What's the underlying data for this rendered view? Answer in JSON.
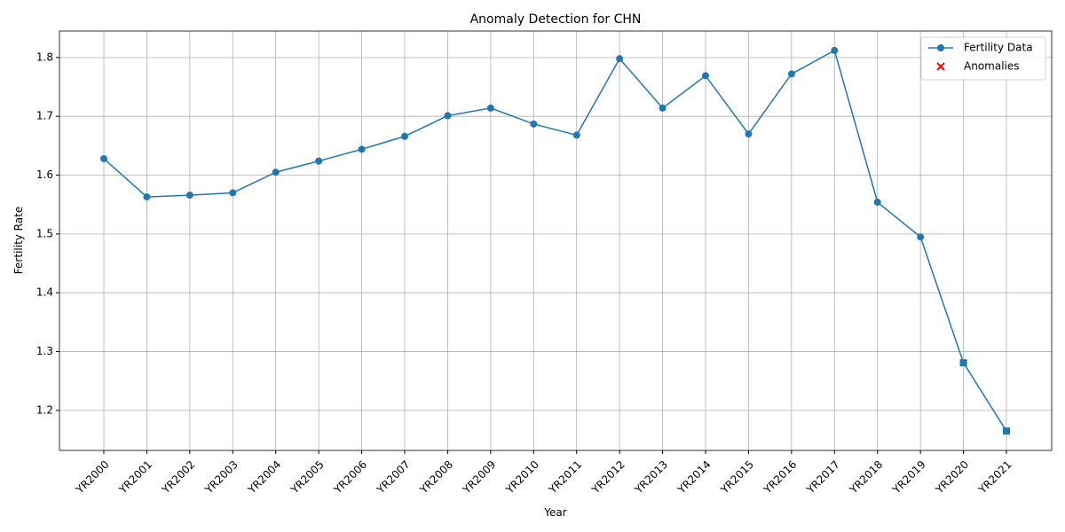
{
  "chart_data": {
    "type": "line",
    "title": "Anomaly Detection for CHN",
    "xlabel": "Year",
    "ylabel": "Fertility Rate",
    "categories": [
      "YR2000",
      "YR2001",
      "YR2002",
      "YR2003",
      "YR2004",
      "YR2005",
      "YR2006",
      "YR2007",
      "YR2008",
      "YR2009",
      "YR2010",
      "YR2011",
      "YR2012",
      "YR2013",
      "YR2014",
      "YR2015",
      "YR2016",
      "YR2017",
      "YR2018",
      "YR2019",
      "YR2020",
      "YR2021"
    ],
    "series": [
      {
        "name": "Fertility Data",
        "color": "#1f77b4",
        "marker": "o",
        "markers": [
          "o",
          "o",
          "o",
          "o",
          "o",
          "o",
          "o",
          "o",
          "o",
          "o",
          "o",
          "o",
          "o",
          "o",
          "o",
          "o",
          "o",
          "o",
          "o",
          "o",
          "s",
          "s"
        ],
        "values": [
          1.628,
          1.563,
          1.566,
          1.57,
          1.605,
          1.624,
          1.644,
          1.666,
          1.701,
          1.714,
          1.687,
          1.668,
          1.798,
          1.714,
          1.769,
          1.67,
          1.772,
          1.812,
          1.554,
          1.495,
          1.281,
          1.165
        ]
      },
      {
        "name": "Anomalies",
        "color": "red",
        "marker": "x",
        "values": [
          null,
          null,
          null,
          null,
          null,
          null,
          null,
          null,
          null,
          null,
          null,
          null,
          null,
          null,
          null,
          null,
          null,
          null,
          null,
          null,
          null,
          null
        ]
      }
    ],
    "ylim": [
      1.132,
      1.845
    ],
    "yticks": [
      1.2,
      1.3,
      1.4,
      1.5,
      1.6,
      1.7,
      1.8
    ],
    "grid": true,
    "legend": "upper right"
  }
}
